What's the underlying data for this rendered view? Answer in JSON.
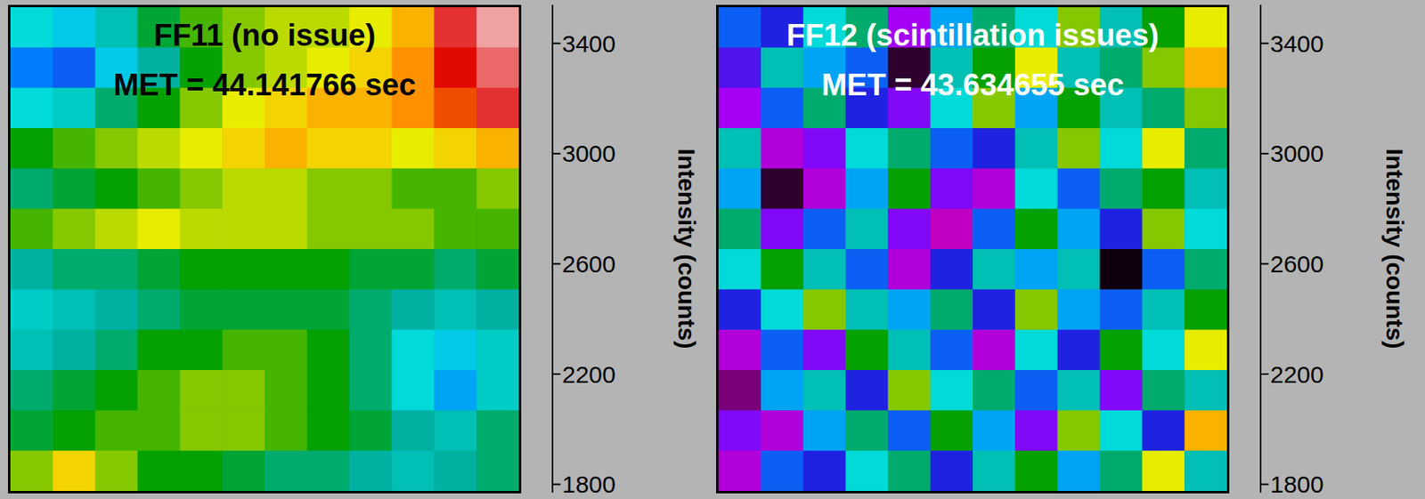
{
  "chart_data": [
    {
      "type": "heatmap",
      "title": "FF11 (no issue)",
      "subtitle": "MET = 44.141766 sec",
      "cells": [
        [
          2500,
          2450,
          2600,
          2750,
          2850,
          2900,
          2950,
          2950,
          3000,
          3100,
          3300,
          3400
        ],
        [
          2350,
          2300,
          2450,
          2650,
          2800,
          2900,
          2950,
          3000,
          3050,
          3150,
          3250,
          3350
        ],
        [
          2500,
          2550,
          2700,
          2800,
          2900,
          3000,
          3050,
          3100,
          3100,
          3150,
          3200,
          3300
        ],
        [
          2800,
          2850,
          2900,
          2950,
          3000,
          3050,
          3100,
          3050,
          3050,
          3000,
          3050,
          3100
        ],
        [
          2700,
          2750,
          2800,
          2850,
          2900,
          2950,
          2950,
          2900,
          2900,
          2850,
          2850,
          2900
        ],
        [
          2850,
          2900,
          2950,
          3000,
          2950,
          2950,
          2950,
          2900,
          2900,
          2900,
          2850,
          2850
        ],
        [
          2650,
          2700,
          2700,
          2750,
          2800,
          2800,
          2800,
          2800,
          2750,
          2750,
          2700,
          2750
        ],
        [
          2550,
          2600,
          2650,
          2700,
          2750,
          2750,
          2750,
          2750,
          2700,
          2650,
          2600,
          2650
        ],
        [
          2600,
          2650,
          2700,
          2800,
          2800,
          2850,
          2850,
          2800,
          2700,
          2500,
          2450,
          2550
        ],
        [
          2700,
          2750,
          2800,
          2850,
          2900,
          2900,
          2850,
          2800,
          2700,
          2500,
          2400,
          2550
        ],
        [
          2750,
          2800,
          2850,
          2850,
          2900,
          2900,
          2850,
          2800,
          2750,
          2650,
          2600,
          2700
        ],
        [
          2900,
          3050,
          2900,
          2800,
          2800,
          2750,
          2700,
          2700,
          2650,
          2600,
          2650,
          2700
        ]
      ],
      "colorbar": {
        "label": "Intensity (counts)",
        "range": [
          1770,
          3540
        ],
        "ticks": [
          1800,
          2200,
          2600,
          3000,
          3400
        ]
      },
      "tick_labels": false
    },
    {
      "type": "heatmap",
      "title": "FF12 (scintillation issues)",
      "subtitle": "MET = 43.634655 sec",
      "cells": [
        [
          2300,
          2200,
          2500,
          2700,
          2050,
          2400,
          2700,
          2500,
          2900,
          2600,
          2800,
          3000
        ],
        [
          2150,
          2600,
          2400,
          2300,
          1850,
          2600,
          2800,
          3000,
          2600,
          2700,
          2900,
          3100
        ],
        [
          2050,
          2300,
          2700,
          2200,
          2100,
          2500,
          2900,
          2400,
          2800,
          2600,
          2700,
          2900
        ],
        [
          2600,
          2000,
          2100,
          2500,
          2700,
          2300,
          2200,
          2600,
          2900,
          2500,
          3000,
          2700
        ],
        [
          2400,
          1850,
          2000,
          2400,
          2800,
          2100,
          2000,
          2500,
          2300,
          2700,
          2800,
          2600
        ],
        [
          2700,
          2100,
          2300,
          2600,
          2100,
          1950,
          2300,
          2800,
          2400,
          2200,
          2900,
          2500
        ],
        [
          2500,
          2800,
          2600,
          2300,
          2000,
          2200,
          2600,
          2400,
          2600,
          1800,
          2300,
          2700
        ],
        [
          2200,
          2500,
          2900,
          2600,
          2400,
          2700,
          2200,
          2900,
          2400,
          2300,
          2600,
          2800
        ],
        [
          2000,
          2300,
          2100,
          2800,
          2600,
          2300,
          2000,
          2500,
          2200,
          2800,
          2500,
          3000
        ],
        [
          1900,
          2400,
          2600,
          2200,
          2900,
          2500,
          2700,
          2300,
          2600,
          2100,
          2700,
          2600
        ],
        [
          2100,
          2000,
          2400,
          2700,
          2300,
          2800,
          2400,
          2100,
          2900,
          2500,
          2200,
          3100
        ],
        [
          2000,
          2300,
          2200,
          2500,
          2700,
          2200,
          2600,
          2800,
          2400,
          2700,
          3000,
          2600
        ]
      ],
      "colorbar": {
        "label": "Intensity (counts)",
        "range": [
          1770,
          3540
        ],
        "ticks": [
          1800,
          2200,
          2600,
          3000,
          3400
        ]
      },
      "tick_labels": false
    }
  ]
}
